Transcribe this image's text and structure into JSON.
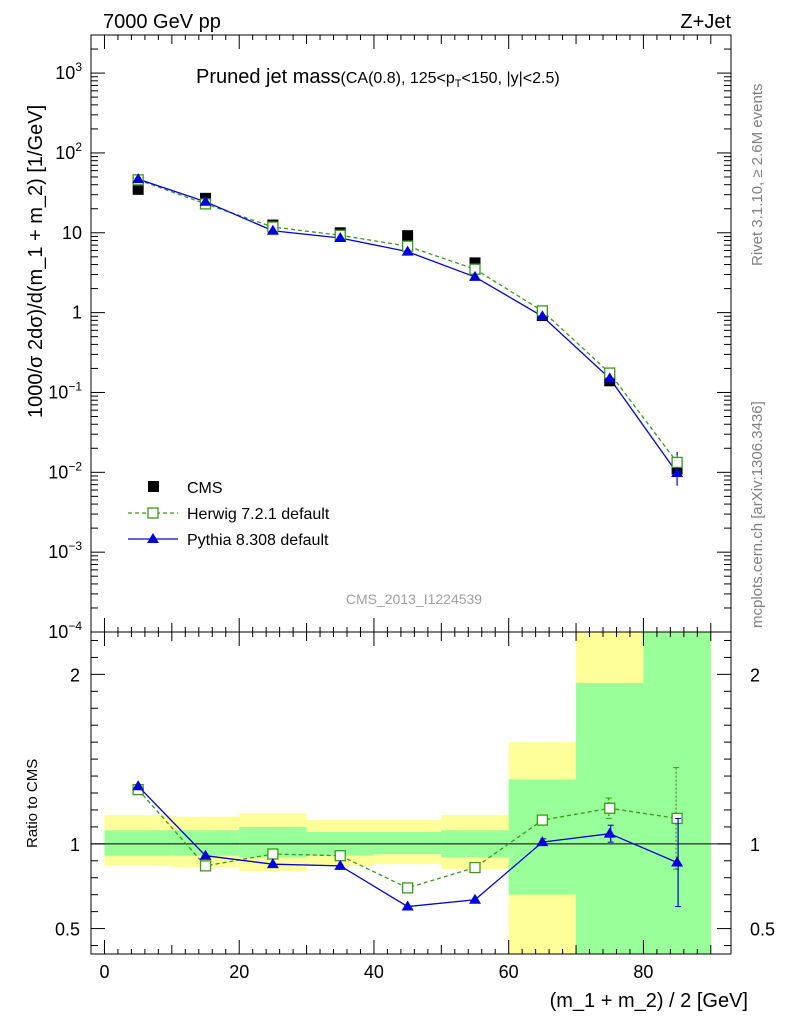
{
  "header": {
    "left": "7000 GeV pp",
    "right": "Z+Jet"
  },
  "title": {
    "main": "Pruned jet mass",
    "cuts_a": "(CA(0.8), 125<p",
    "cuts_sub": "T",
    "cuts_b": "<150, |y|<2.5)"
  },
  "side_labels": {
    "rivet": "Rivet 3.1.10, ≥ 2.6M events",
    "mcplots": "mcplots.cern.ch [arXiv:1306.3436]"
  },
  "watermark": "CMS_2013_I1224539",
  "legend": {
    "cms": "CMS",
    "herwig": "Herwig 7.2.1 default",
    "pythia": "Pythia 8.308 default"
  },
  "colors": {
    "cms": "#000000",
    "herwig": "#3a9a1a",
    "pythia": "#0000dd",
    "band_inner": "#99ff99",
    "band_outer": "#ffff99"
  },
  "chart_data": [
    {
      "type": "scatter",
      "panel": "main",
      "ylabel": "1000/σ 2dσ)/d(m_1 + m_2) [1/GeV]",
      "yscale": "log",
      "ylim": [
        0.0001,
        3000
      ],
      "xlim": [
        -2,
        93
      ],
      "y_ticks": [
        {
          "v": 1000,
          "base": "10",
          "exp": "3"
        },
        {
          "v": 100,
          "base": "10",
          "exp": "2"
        },
        {
          "v": 10,
          "base": "10",
          "exp": ""
        },
        {
          "v": 1,
          "base": "1",
          "exp": ""
        },
        {
          "v": 0.1,
          "base": "10",
          "exp": "−1"
        },
        {
          "v": 0.01,
          "base": "10",
          "exp": "−2"
        },
        {
          "v": 0.001,
          "base": "10",
          "exp": "−3"
        },
        {
          "v": 0.0001,
          "base": "10",
          "exp": "−4"
        }
      ],
      "x": [
        5,
        15,
        25,
        35,
        45,
        55,
        65,
        75,
        85
      ],
      "series": [
        {
          "name": "CMS",
          "marker": "square",
          "values": [
            35,
            27,
            12.5,
            10,
            9.2,
            4.2,
            0.92,
            0.14,
            0.011
          ]
        },
        {
          "name": "Herwig 7.2.1 default",
          "marker": "open-square",
          "line": "dashed",
          "values": [
            46,
            23,
            11.8,
            9.3,
            6.8,
            3.5,
            1.05,
            0.175,
            0.0133
          ]
        },
        {
          "name": "Pythia 8.308 default",
          "marker": "triangle",
          "line": "solid",
          "values": [
            47,
            24.5,
            10.6,
            8.6,
            5.8,
            2.8,
            0.9,
            0.15,
            0.0098
          ]
        }
      ]
    },
    {
      "type": "scatter",
      "panel": "ratio",
      "xlabel": "(m_1 + m_2) / 2 [GeV]",
      "ylabel": "Ratio to CMS",
      "ylim": [
        0.35,
        2.25
      ],
      "xlim": [
        -2,
        93
      ],
      "x_ticks": [
        0,
        20,
        40,
        60,
        80
      ],
      "y_ticks": [
        {
          "v": 0.5,
          "label": "0.5"
        },
        {
          "v": 1,
          "label": "1"
        },
        {
          "v": 2,
          "label": "2"
        }
      ],
      "bands": [
        {
          "x0": 0,
          "x1": 10,
          "outer": [
            0.87,
            1.17
          ],
          "inner": [
            0.93,
            1.08
          ]
        },
        {
          "x0": 10,
          "x1": 20,
          "outer": [
            0.86,
            1.16
          ],
          "inner": [
            0.93,
            1.08
          ]
        },
        {
          "x0": 20,
          "x1": 30,
          "outer": [
            0.84,
            1.18
          ],
          "inner": [
            0.92,
            1.1
          ]
        },
        {
          "x0": 30,
          "x1": 40,
          "outer": [
            0.87,
            1.14
          ],
          "inner": [
            0.93,
            1.07
          ]
        },
        {
          "x0": 40,
          "x1": 50,
          "outer": [
            0.88,
            1.14
          ],
          "inner": [
            0.94,
            1.07
          ]
        },
        {
          "x0": 50,
          "x1": 60,
          "outer": [
            0.85,
            1.17
          ],
          "inner": [
            0.92,
            1.08
          ]
        },
        {
          "x0": 60,
          "x1": 70,
          "outer": [
            0.35,
            1.6
          ],
          "inner": [
            0.7,
            1.38
          ]
        },
        {
          "x0": 70,
          "x1": 80,
          "outer": [
            0.35,
            2.25
          ],
          "inner": [
            0.35,
            1.95
          ]
        },
        {
          "x0": 80,
          "x1": 90,
          "outer": [
            0.35,
            2.25
          ],
          "inner": [
            0.35,
            2.25
          ]
        }
      ],
      "reference_line": 1,
      "x": [
        5,
        15,
        25,
        35,
        45,
        55,
        65,
        75,
        85
      ],
      "series": [
        {
          "name": "Herwig 7.2.1 default",
          "marker": "open-square",
          "line": "dashed",
          "values": [
            1.32,
            0.87,
            0.94,
            0.93,
            0.74,
            0.86,
            1.14,
            1.21,
            1.15
          ],
          "err": [
            0,
            0,
            0,
            0,
            0,
            0,
            0.03,
            0.06,
            0.3
          ]
        },
        {
          "name": "Pythia 8.308 default",
          "marker": "triangle",
          "line": "solid",
          "values": [
            1.34,
            0.93,
            0.88,
            0.87,
            0.63,
            0.67,
            1.01,
            1.06,
            0.89
          ],
          "err": [
            0,
            0,
            0,
            0,
            0,
            0,
            0.02,
            0.05,
            0.26
          ]
        }
      ]
    }
  ]
}
